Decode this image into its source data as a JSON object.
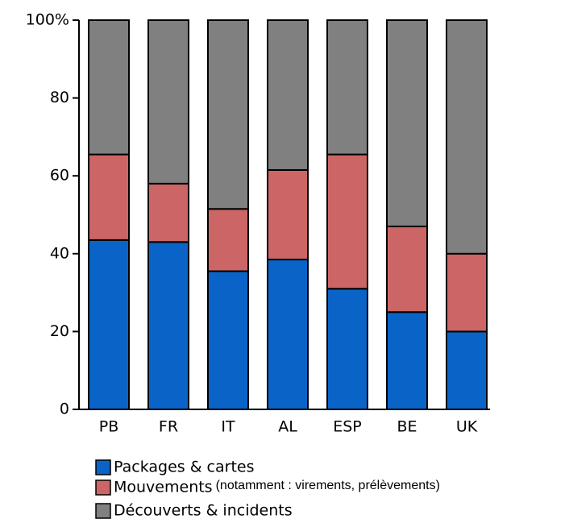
{
  "chart_data": {
    "type": "stacked_bar",
    "categories": [
      "PB",
      "FR",
      "IT",
      "AL",
      "ESP",
      "BE",
      "UK"
    ],
    "series": [
      {
        "name": "Packages & cartes",
        "color": "#0a64c8",
        "values": [
          43.5,
          43,
          35.5,
          38.5,
          31,
          25,
          20
        ]
      },
      {
        "name": "Mouvements",
        "color": "#cc6666",
        "values": [
          22,
          15,
          16,
          23,
          34.5,
          22,
          20
        ]
      },
      {
        "name": "Découverts & incidents",
        "color": "#808080",
        "values": [
          34.5,
          42,
          48.5,
          38.5,
          34.5,
          53,
          60
        ]
      }
    ],
    "annotation": "(notamment : virements, prélèvements)",
    "ylim": [
      0,
      100
    ],
    "yticks": [
      0,
      20,
      40,
      60,
      80,
      {
        "value": 100,
        "label": "100%"
      }
    ]
  }
}
